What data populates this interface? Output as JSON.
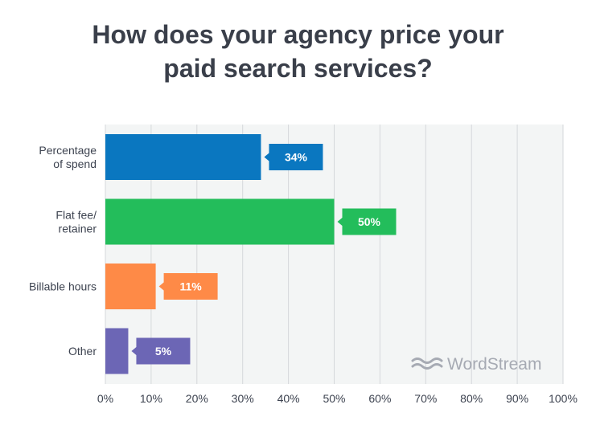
{
  "chart_data": {
    "type": "bar",
    "orientation": "horizontal",
    "title_lines": [
      "How does your agency price your",
      "paid search services?"
    ],
    "categories": [
      [
        "Percentage",
        "of spend"
      ],
      [
        "Flat fee/",
        "retainer"
      ],
      [
        "Billable hours"
      ],
      [
        "Other"
      ]
    ],
    "values": [
      34,
      50,
      11,
      5
    ],
    "value_labels": [
      "34%",
      "50%",
      "11%",
      "5%"
    ],
    "colors": [
      "#0a77c0",
      "#23bd5b",
      "#fe8a47",
      "#6c66b5"
    ],
    "xlim": [
      0,
      100
    ],
    "xticks": [
      0,
      10,
      20,
      30,
      40,
      50,
      60,
      70,
      80,
      90,
      100
    ],
    "xtick_labels": [
      "0%",
      "10%",
      "20%",
      "30%",
      "40%",
      "50%",
      "60%",
      "70%",
      "80%",
      "90%",
      "100%"
    ],
    "grid": true,
    "plot_background": "#f3f5f5",
    "grid_color": "#d5d8db"
  },
  "brand": {
    "name": "WordStream",
    "color": "#a6aab3"
  }
}
